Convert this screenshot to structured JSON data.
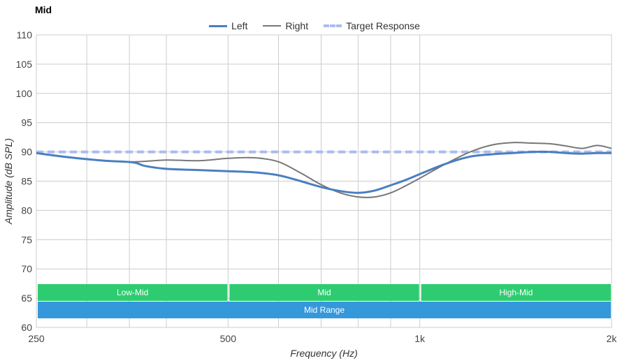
{
  "chart_data": {
    "type": "line",
    "title": "Mid",
    "xlabel": "Frequency (Hz)",
    "ylabel": "Amplitude (dB SPL)",
    "x_scale": "log",
    "xlim": [
      250,
      2000
    ],
    "ylim": [
      60,
      110
    ],
    "x_ticks": [
      {
        "value": 250,
        "label": "250"
      },
      {
        "value": 500,
        "label": "500"
      },
      {
        "value": 1000,
        "label": "1k"
      },
      {
        "value": 2000,
        "label": "2k"
      }
    ],
    "y_ticks": [
      {
        "value": 110,
        "label": "110"
      },
      {
        "value": 105,
        "label": "105"
      },
      {
        "value": 100,
        "label": "100"
      },
      {
        "value": 95,
        "label": "95"
      },
      {
        "value": 90,
        "label": "90"
      },
      {
        "value": 85,
        "label": "85"
      },
      {
        "value": 80,
        "label": "80"
      },
      {
        "value": 75,
        "label": "75"
      },
      {
        "value": 70,
        "label": "70"
      },
      {
        "value": 65,
        "label": "65"
      },
      {
        "value": 60,
        "label": "60"
      }
    ],
    "x_grid": [
      250,
      300,
      350,
      400,
      500,
      600,
      700,
      800,
      900,
      1000,
      2000
    ],
    "grid": true,
    "legend_position": "top-center",
    "series": [
      {
        "name": "Left",
        "color": "#4a7fc1",
        "style": "solid-thick",
        "x": [
          250,
          280,
          320,
          355,
          370,
          400,
          450,
          500,
          550,
          600,
          650,
          700,
          750,
          800,
          850,
          900,
          950,
          1000,
          1100,
          1200,
          1300,
          1400,
          1500,
          1600,
          1700,
          1800,
          1900,
          2000
        ],
        "y": [
          89.8,
          89.1,
          88.5,
          88.2,
          87.6,
          87.1,
          86.9,
          86.7,
          86.5,
          86.0,
          85.0,
          84.0,
          83.3,
          83.0,
          83.4,
          84.3,
          85.2,
          86.2,
          88.0,
          89.2,
          89.6,
          89.8,
          90.0,
          90.0,
          89.8,
          89.7,
          89.8,
          89.8
        ]
      },
      {
        "name": "Right",
        "color": "#777777",
        "style": "solid-thin",
        "x": [
          250,
          300,
          350,
          400,
          450,
          500,
          550,
          600,
          650,
          700,
          750,
          800,
          850,
          900,
          950,
          1000,
          1100,
          1200,
          1300,
          1400,
          1500,
          1600,
          1700,
          1800,
          1900,
          2000
        ],
        "y": [
          89.8,
          88.8,
          88.3,
          88.6,
          88.5,
          88.9,
          89.0,
          88.3,
          86.4,
          84.4,
          83.0,
          82.3,
          82.3,
          83.0,
          84.2,
          85.5,
          88.0,
          90.0,
          91.2,
          91.6,
          91.5,
          91.4,
          91.0,
          90.6,
          91.1,
          90.6
        ]
      },
      {
        "name": "Target Response",
        "color": "#aabbf0",
        "style": "dashed",
        "x": [
          250,
          2000
        ],
        "y": [
          90,
          90
        ]
      }
    ],
    "bands": [
      {
        "label": "Low-Mid",
        "from": 250,
        "to": 500,
        "row": 1,
        "color": "#2ecc71"
      },
      {
        "label": "Mid",
        "from": 500,
        "to": 1000,
        "row": 1,
        "color": "#2ecc71"
      },
      {
        "label": "High-Mid",
        "from": 1000,
        "to": 2000,
        "row": 1,
        "color": "#2ecc71"
      },
      {
        "label": "Mid Range",
        "from": 250,
        "to": 2000,
        "row": 2,
        "color": "#3498db"
      }
    ]
  }
}
